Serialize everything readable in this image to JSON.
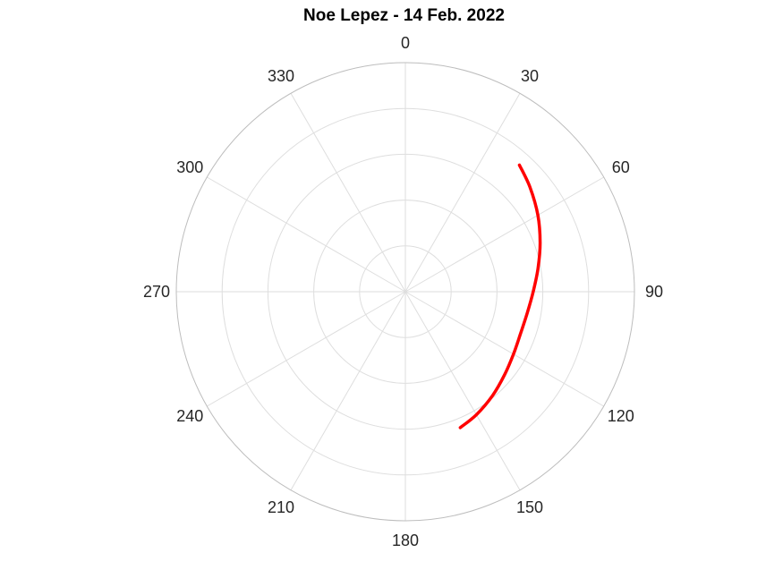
{
  "chart_data": {
    "type": "polar-line",
    "title": "Noe Lepez - 14 Feb. 2022",
    "theta_direction": "clockwise",
    "theta_zero_location": "top",
    "theta_ticks": [
      0,
      30,
      60,
      90,
      120,
      150,
      180,
      210,
      240,
      270,
      300,
      330
    ],
    "theta_tick_labels": [
      "0",
      "30",
      "60",
      "90",
      "120",
      "150",
      "180",
      "210",
      "240",
      "270",
      "300",
      "330"
    ],
    "r_lim": [
      0,
      1
    ],
    "r_grid": [
      0.2,
      0.4,
      0.6,
      0.8,
      1.0
    ],
    "r_tick_labels_visible": false,
    "grid": true,
    "series": [
      {
        "color": "#ff0000",
        "theta_deg": [
          42,
          50,
          60,
          70,
          80,
          90,
          100,
          110,
          120,
          130,
          140,
          150,
          158
        ],
        "r": [
          0.744,
          0.71,
          0.668,
          0.626,
          0.588,
          0.558,
          0.54,
          0.535,
          0.545,
          0.565,
          0.592,
          0.62,
          0.64
        ]
      }
    ]
  }
}
